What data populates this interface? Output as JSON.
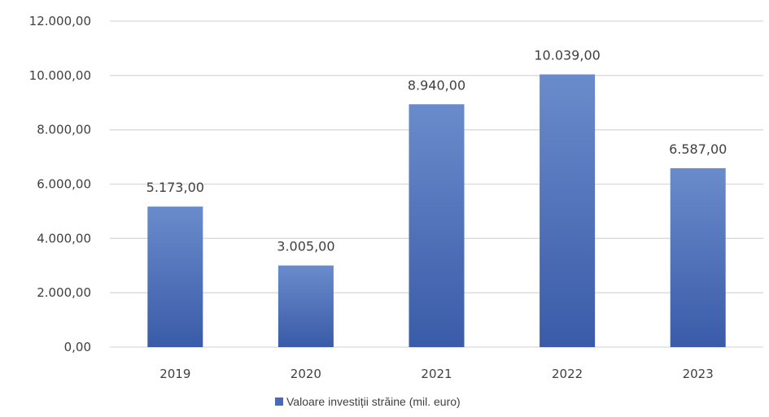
{
  "chart_data": {
    "type": "bar",
    "categories": [
      "2019",
      "2020",
      "2021",
      "2022",
      "2023"
    ],
    "series": [
      {
        "name": "Valoare investiții străine (mil. euro)",
        "values": [
          5173,
          3005,
          8940,
          10039,
          6587
        ],
        "labels": [
          "5.173,00",
          "3.005,00",
          "8.940,00",
          "10.039,00",
          "6.587,00"
        ]
      }
    ],
    "ylim": [
      0,
      12000
    ],
    "y_ticks": [
      0,
      2000,
      4000,
      6000,
      8000,
      10000,
      12000
    ],
    "y_tick_labels": [
      "0,00",
      "2.000,00",
      "4.000,00",
      "6.000,00",
      "8.000,00",
      "10.000,00",
      "12.000,00"
    ],
    "grid": true,
    "legend_position": "bottom",
    "title": "",
    "xlabel": "",
    "ylabel": ""
  },
  "colors": {
    "bar_top": "#6a8bcb",
    "bar_bottom": "#3a5ba8",
    "legend_swatch": "#4a6ab7"
  }
}
